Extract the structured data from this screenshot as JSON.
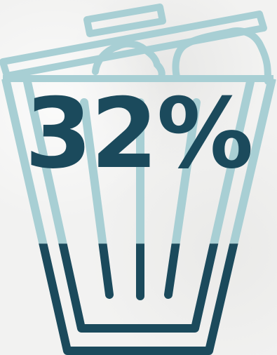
{
  "infographic": {
    "percentage_text": "32%",
    "fill_fraction": 0.32,
    "icon": "trash-can-icon",
    "colors": {
      "filled": "#1b4a5c",
      "unfilled": "#a8cfd4",
      "background": "#f2f2f1"
    }
  }
}
